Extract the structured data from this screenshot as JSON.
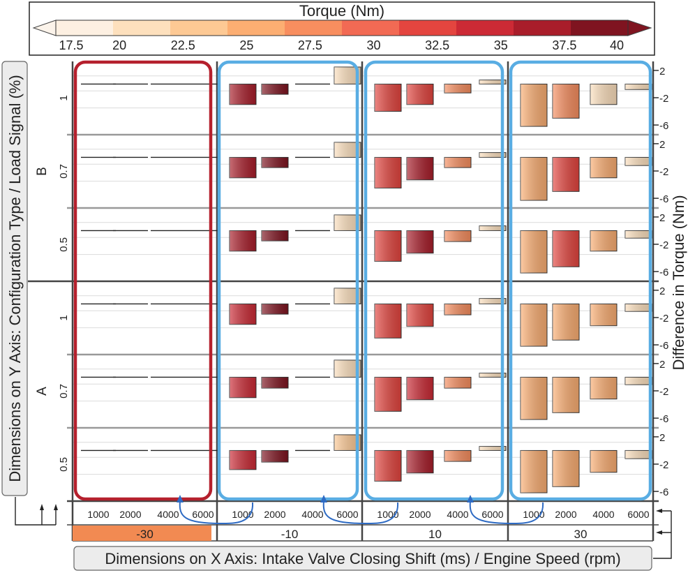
{
  "chart_data": {
    "type": "bar",
    "title": "",
    "legend": {
      "title": "Torque (Nm)",
      "ticks": [
        "17.5",
        "20",
        "22.5",
        "25",
        "27.5",
        "30",
        "32.5",
        "35",
        "37.5",
        "40"
      ],
      "range": [
        17.5,
        40
      ],
      "colors": [
        "#fdf0e2",
        "#fde0bd",
        "#fdc994",
        "#fcae72",
        "#f88e5f",
        "#f26a54",
        "#e4453f",
        "#cc2a35",
        "#a91d2a",
        "#7f1420"
      ]
    },
    "x_axis_label": "Dimensions on X Axis: Intake Valve Closing Shift (ms) / Engine Speed (rpm)",
    "y_axis_label": "Dimensions on Y Axis: Configuration Type / Load Signal (%)",
    "right_axis_label": "Difference in Torque (Nm)",
    "diff_ticks": [
      "2",
      "-2",
      "-6"
    ],
    "diff_range": [
      -6.5,
      2.5
    ],
    "speeds": [
      "1000",
      "2000",
      "4000",
      "6000"
    ],
    "ivc_shifts": [
      "-30",
      "-10",
      "10",
      "30"
    ],
    "highlight_shift": "-30",
    "configs": [
      {
        "name": "B",
        "loads": [
          "1",
          "0.7",
          "0.5"
        ]
      },
      {
        "name": "A",
        "loads": [
          "1",
          "0.7",
          "0.5"
        ]
      }
    ],
    "differences": {
      "B": {
        "1": {
          "-30": [
            0,
            0,
            0,
            0
          ],
          "-10": [
            -3,
            -1.5,
            0,
            2.5
          ],
          "10": [
            -4,
            -3,
            -1.3,
            0.6
          ],
          "30": [
            -6.2,
            -5,
            -3,
            -0.8
          ]
        },
        "0.7": {
          "-30": [
            0,
            0,
            0,
            0
          ],
          "-10": [
            -3,
            -1.5,
            0,
            2.2
          ],
          "10": [
            -4.5,
            -3.3,
            -1.5,
            0.7
          ],
          "30": [
            -6.3,
            -5,
            -3,
            -1.2
          ]
        },
        "0.5": {
          "-30": [
            0,
            0,
            0,
            0
          ],
          "-10": [
            -3,
            -1.5,
            0,
            2.3
          ],
          "10": [
            -4.5,
            -3.3,
            -1.6,
            0.7
          ],
          "30": [
            -6.2,
            -5.3,
            -3,
            -1.1
          ]
        }
      },
      "A": {
        "1": {
          "-30": [
            0,
            0,
            0,
            0
          ],
          "-10": [
            -3,
            -1.5,
            0,
            2.3
          ],
          "10": [
            -5,
            -3.3,
            -1.6,
            0.8
          ],
          "30": [
            -6.2,
            -5.3,
            -3.2,
            -1.1
          ]
        },
        "0.7": {
          "-30": [
            0,
            0,
            0,
            0
          ],
          "-10": [
            -3,
            -1.6,
            0,
            2.5
          ],
          "10": [
            -5,
            -3.3,
            -1.6,
            0.6
          ],
          "30": [
            -6.2,
            -5.2,
            -3.2,
            -1.1
          ]
        },
        "0.5": {
          "-30": [
            0,
            0,
            0,
            0
          ],
          "-10": [
            -2.8,
            -1.7,
            0,
            2.3
          ],
          "10": [
            -4.5,
            -3.3,
            -1.6,
            0.6
          ],
          "30": [
            -6.2,
            -5.3,
            -3.2,
            -1.2
          ]
        }
      }
    },
    "torque": {
      "B": {
        "1": {
          "-10": [
            37,
            38.5,
            null,
            21
          ],
          "10": [
            31.5,
            33,
            27,
            21
          ],
          "30": [
            25,
            26.5,
            21.5,
            21
          ]
        },
        "0.7": {
          "-10": [
            36,
            38.5,
            null,
            21
          ],
          "10": [
            32,
            35.5,
            27,
            21
          ],
          "30": [
            25.5,
            31,
            25,
            21
          ]
        },
        "0.5": {
          "-10": [
            36,
            38.5,
            null,
            21
          ],
          "10": [
            31,
            35.5,
            27,
            21
          ],
          "30": [
            25,
            33,
            24.5,
            21
          ]
        }
      },
      "A": {
        "1": {
          "-10": [
            35,
            38.5,
            null,
            21
          ],
          "10": [
            31.5,
            33,
            27,
            21
          ],
          "30": [
            25.5,
            25.5,
            24.5,
            21
          ]
        },
        "0.7": {
          "-10": [
            35,
            38.5,
            null,
            21
          ],
          "10": [
            32,
            35,
            27,
            21
          ],
          "30": [
            25.5,
            25.5,
            24.5,
            21
          ]
        },
        "0.5": {
          "-10": [
            35,
            38.5,
            null,
            24
          ],
          "10": [
            32,
            35.5,
            27,
            21
          ],
          "30": [
            25.5,
            25.5,
            24.5,
            21
          ]
        }
      }
    }
  }
}
